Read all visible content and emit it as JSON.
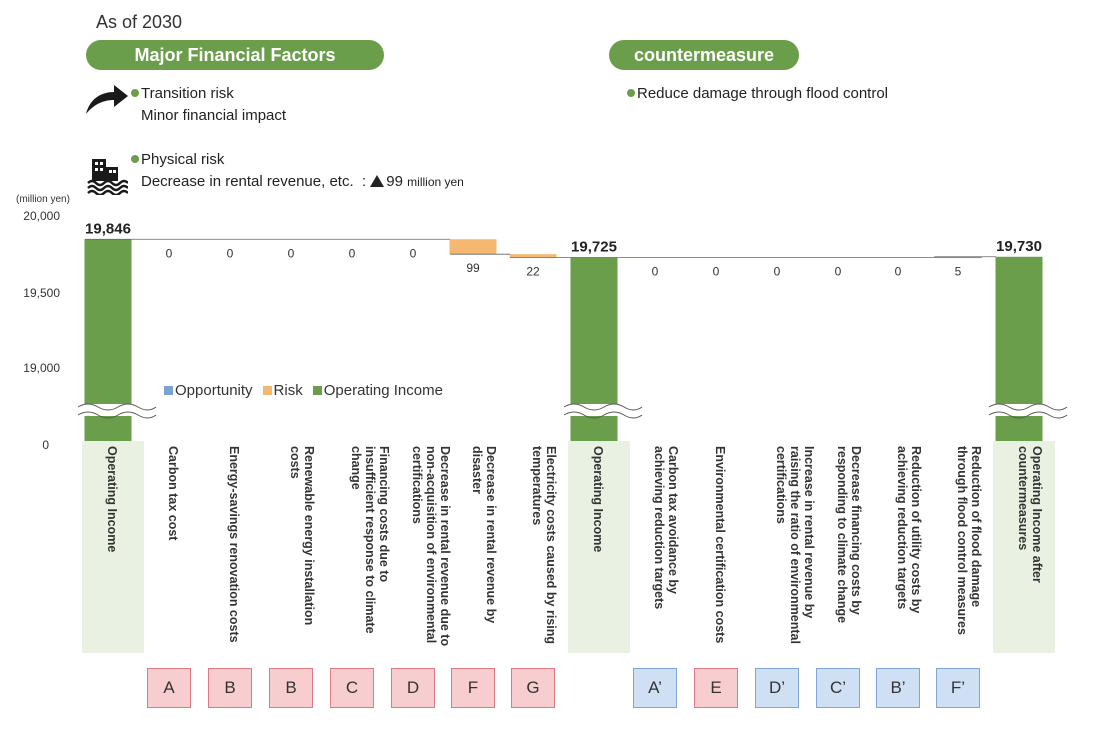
{
  "header": {
    "as_of": "As of 2030",
    "left_pill": "Major Financial Factors",
    "right_pill": "countermeasure"
  },
  "factors": {
    "transition_title": "Transition risk",
    "transition_detail": "Minor financial impact",
    "physical_title": "Physical risk",
    "physical_detail": "Decrease in rental revenue, etc.  :",
    "physical_amount": "99",
    "physical_unit": "million yen"
  },
  "countermeasure": {
    "item": "Reduce damage through flood control"
  },
  "icons": {
    "transition": "curved-arrow-icon",
    "physical": "flooded-building-icon"
  },
  "legend": {
    "opportunity": "Opportunity",
    "risk": "Risk",
    "operating_income": "Operating Income"
  },
  "colors": {
    "operating_income": "#6a9e4a",
    "risk": "#f4b870",
    "opportunity": "#7aa3d4",
    "category_bg": "#e8f1e2"
  },
  "chart_data": {
    "type": "waterfall",
    "unit_label": "(million yen)",
    "y_ticks": [
      "20,000",
      "19,500",
      "19,000",
      "0"
    ],
    "axis_break": true,
    "bars": [
      {
        "label": "Operating Income",
        "kind": "total",
        "value": 19846,
        "value_label": "19,846",
        "code": ""
      },
      {
        "label": "Carbon tax cost",
        "kind": "risk",
        "value": 0,
        "value_label": "0",
        "code": "A"
      },
      {
        "label": "Energy-savings renovation costs",
        "kind": "risk",
        "value": 0,
        "value_label": "0",
        "code": "B"
      },
      {
        "label": "Renewable energy installation costs",
        "kind": "risk",
        "value": 0,
        "value_label": "0",
        "code": "B"
      },
      {
        "label": "Financing costs due to insufficient response to climate change",
        "kind": "risk",
        "value": 0,
        "value_label": "0",
        "code": "C"
      },
      {
        "label": "Decrease in rental revenue due to non-acquisition of environmental certifications",
        "kind": "risk",
        "value": 0,
        "value_label": "0",
        "code": "D"
      },
      {
        "label": "Decrease in rental revenue by disaster",
        "kind": "risk",
        "value": 99,
        "value_label": "99",
        "code": "F"
      },
      {
        "label": "Electricity costs caused by rising temperatures",
        "kind": "risk",
        "value": 22,
        "value_label": "22",
        "code": "G"
      },
      {
        "label": "Operating Income",
        "kind": "total",
        "value": 19725,
        "value_label": "19,725",
        "code": ""
      },
      {
        "label": "Carbon tax avoidance by achieving reduction targets",
        "kind": "opportunity",
        "value": 0,
        "value_label": "0",
        "code": "A’"
      },
      {
        "label": "Environmental certification costs",
        "kind": "risk",
        "value": 0,
        "value_label": "0",
        "code": "E"
      },
      {
        "label": "Increase in rental revenue by raising the ratio of environmental certifications",
        "kind": "opportunity",
        "value": 0,
        "value_label": "0",
        "code": "D’"
      },
      {
        "label": "Decrease financing costs by responding to climate change",
        "kind": "opportunity",
        "value": 0,
        "value_label": "0",
        "code": "C’"
      },
      {
        "label": "Reduction of utility costs by achieving reduction targets",
        "kind": "opportunity",
        "value": 0,
        "value_label": "0",
        "code": "B’"
      },
      {
        "label": "Reduction of flood damage through flood control measures",
        "kind": "opportunity",
        "value": 5,
        "value_label": "5",
        "code": "F’"
      },
      {
        "label": "Operating Income after countermeasures",
        "kind": "total",
        "value": 19730,
        "value_label": "19,730",
        "code": ""
      }
    ]
  }
}
